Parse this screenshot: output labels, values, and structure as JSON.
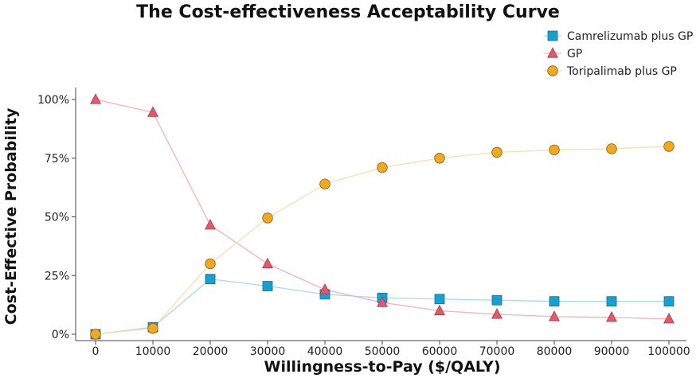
{
  "chart_data": {
    "type": "line",
    "title": "The Cost-effectiveness Acceptability Curve",
    "xlabel": "Willingness-to-Pay ($/QALY)",
    "ylabel": "Cost-Effective Probability",
    "x": [
      0,
      10000,
      20000,
      30000,
      40000,
      50000,
      60000,
      70000,
      80000,
      90000,
      100000
    ],
    "x_tick_labels": [
      "0",
      "10000",
      "20000",
      "30000",
      "40000",
      "50000",
      "60000",
      "70000",
      "80000",
      "90000",
      "100000"
    ],
    "xlim": [
      0,
      100000
    ],
    "ylim": [
      0,
      1
    ],
    "y_ticks": [
      0,
      0.25,
      0.5,
      0.75,
      1.0
    ],
    "y_tick_labels": [
      "0%",
      "25%",
      "50%",
      "75%",
      "100%"
    ],
    "grid": false,
    "legend_position": "top-right",
    "series": [
      {
        "name": "Camrelizumab plus GP",
        "marker": "square",
        "color": "#1a9fd1",
        "line_color": "#a8d8ea",
        "values": [
          0.0,
          0.03,
          0.235,
          0.205,
          0.17,
          0.155,
          0.15,
          0.145,
          0.14,
          0.14,
          0.14
        ]
      },
      {
        "name": "GP",
        "marker": "triangle",
        "color": "#e05a6c",
        "line_color": "#efb3bd",
        "values": [
          1.0,
          0.945,
          0.465,
          0.3,
          0.19,
          0.135,
          0.1,
          0.085,
          0.075,
          0.072,
          0.065
        ]
      },
      {
        "name": "Toripalimab plus GP",
        "marker": "circle",
        "color": "#f2a922",
        "line_color": "#f5dfb0",
        "values": [
          0.0,
          0.025,
          0.3,
          0.495,
          0.64,
          0.71,
          0.75,
          0.775,
          0.785,
          0.79,
          0.8
        ]
      }
    ]
  }
}
